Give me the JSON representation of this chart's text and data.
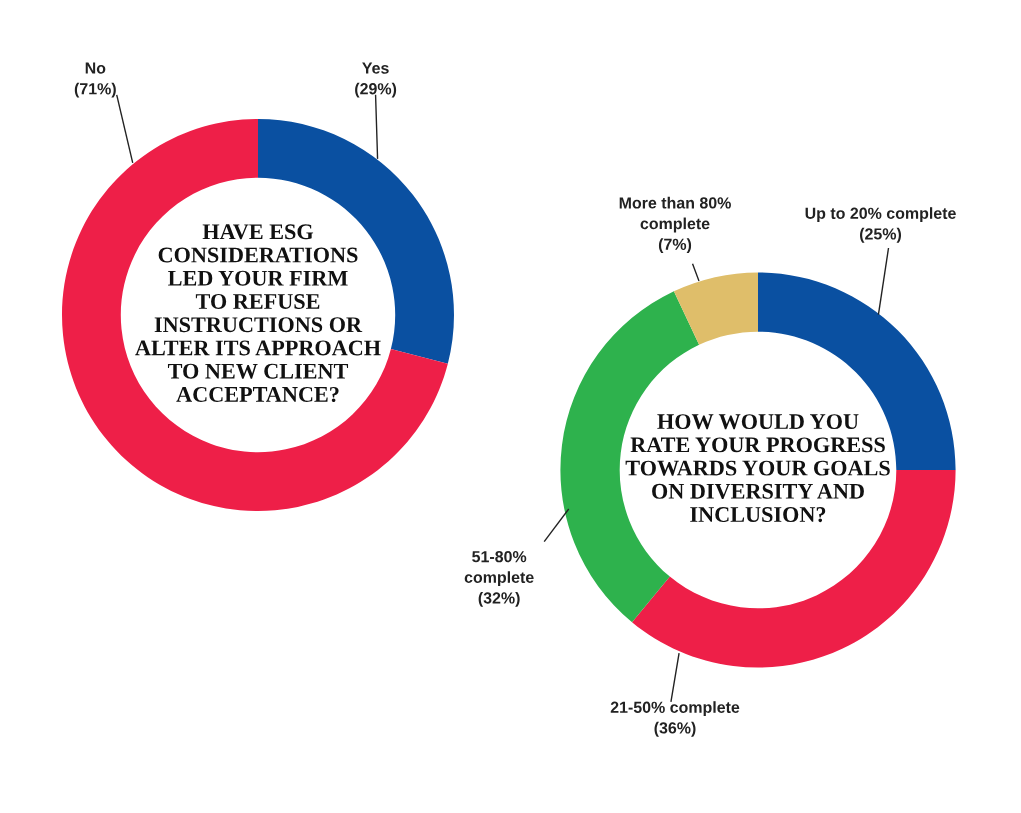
{
  "chart_data": [
    {
      "type": "donut",
      "title": "HAVE ESG\nCONSIDERATIONS\nLED YOUR FIRM\nTO REFUSE\nINSTRUCTIONS OR\nALTER ITS APPROACH\nTO NEW CLIENT\nACCEPTANCE?",
      "categories": [
        "Yes",
        "No"
      ],
      "values": [
        29,
        71
      ],
      "colors": [
        "#0a50a1",
        "#ee1f48"
      ],
      "value_labels": [
        "(29%)",
        "(71%)"
      ]
    },
    {
      "type": "donut",
      "title": "HOW WOULD YOU\nRATE YOUR PROGRESS\nTOWARDS YOUR GOALS\nON DIVERSITY AND\nINCLUSION?",
      "categories": [
        "Up to 20% complete",
        "21-50% complete",
        "51-80%\ncomplete",
        "More than 80%\ncomplete"
      ],
      "values": [
        25,
        36,
        32,
        7
      ],
      "colors": [
        "#0a50a1",
        "#ee1f48",
        "#2eb24d",
        "#dfbe6a"
      ],
      "value_labels": [
        "(25%)",
        "(36%)",
        "(32%)",
        "(7%)"
      ]
    }
  ]
}
